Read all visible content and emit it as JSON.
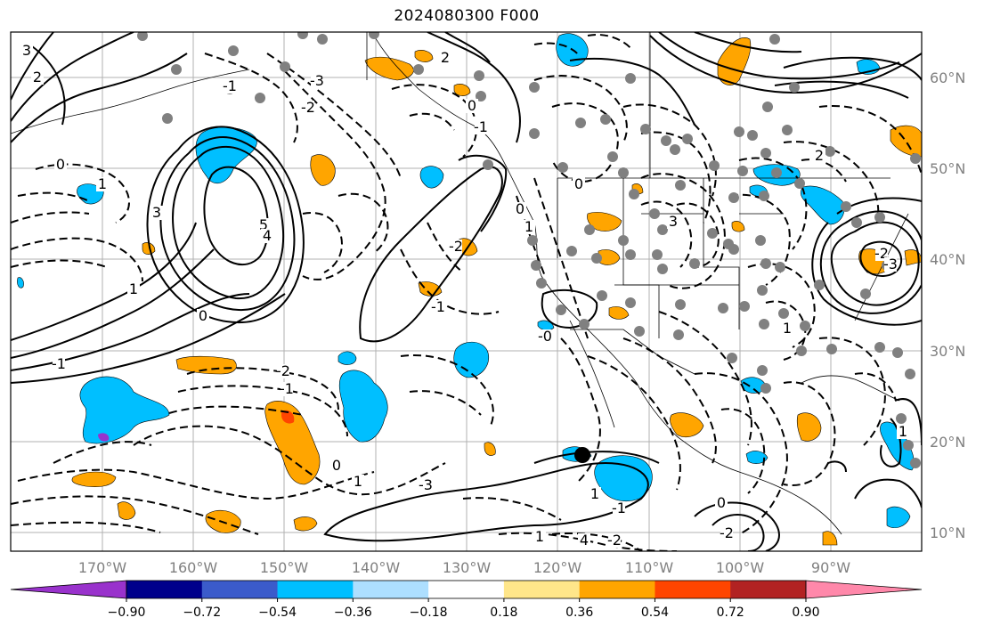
{
  "title": "2024080300 F000",
  "lon_labels": [
    "170°W",
    "160°W",
    "150°W",
    "140°W",
    "130°W",
    "120°W",
    "110°W",
    "100°W",
    "90°W"
  ],
  "lat_labels": [
    "60°N",
    "50°N",
    "40°N",
    "30°N",
    "20°N",
    "10°N"
  ],
  "colorbar": {
    "colors": [
      "#9932CC",
      "#00008B",
      "#3B5BCB",
      "#00BFFF",
      "#ADDFFF",
      "#FFFFFF",
      "#FFE68A",
      "#FFA500",
      "#FF4500",
      "#B22222",
      "#FF88AA"
    ],
    "tick_labels": [
      "−0.90",
      "−0.72",
      "−0.54",
      "−0.36",
      "−0.18",
      "0.18",
      "0.36",
      "0.54",
      "0.72",
      "0.90"
    ]
  },
  "contour_labels": [
    "3",
    "2",
    "1",
    "0",
    "-3",
    "-2",
    "-1",
    "2",
    "0",
    "5",
    "4",
    "3",
    "1",
    "0",
    "-1",
    "-2",
    "-1",
    "0",
    "1",
    "-3",
    "-2",
    "-1",
    "0",
    "1",
    "0",
    "-0",
    "1",
    "-2",
    "4",
    "3",
    "2",
    "1",
    "-2",
    "-3",
    "1",
    "0",
    "-2",
    "-1",
    "1",
    "-1"
  ]
}
